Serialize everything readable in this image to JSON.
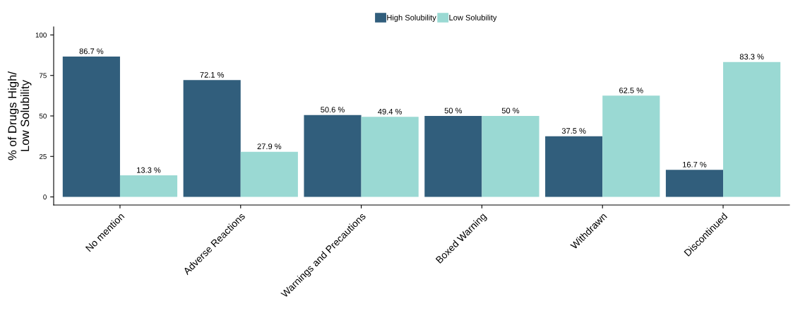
{
  "chart_data": {
    "type": "bar",
    "ylabel": "% of Drugs High/\nLow Solubility",
    "categories": [
      "No mention",
      "Adverse Reactions",
      "Warnings and Precautions",
      "Boxed Warning",
      "Withdrawn",
      "Discontinued"
    ],
    "series": [
      {
        "name": "High Solubility",
        "color": "#315e7c",
        "values": [
          86.7,
          72.1,
          50.6,
          50,
          37.5,
          16.7
        ],
        "value_labels": [
          "86.7 %",
          "72.1 %",
          "50.6 %",
          "50 %",
          "37.5 %",
          "16.7 %"
        ]
      },
      {
        "name": "Low Solubility",
        "color": "#9ad9d3",
        "values": [
          13.3,
          27.9,
          49.4,
          50,
          62.5,
          83.3
        ],
        "value_labels": [
          "13.3 %",
          "27.9 %",
          "49.4 %",
          "50 %",
          "62.5 %",
          "83.3 %"
        ]
      }
    ],
    "ylim": [
      -5,
      105
    ],
    "yticks": [
      0,
      25,
      50,
      75,
      100
    ],
    "grid": false,
    "legend": "top"
  }
}
